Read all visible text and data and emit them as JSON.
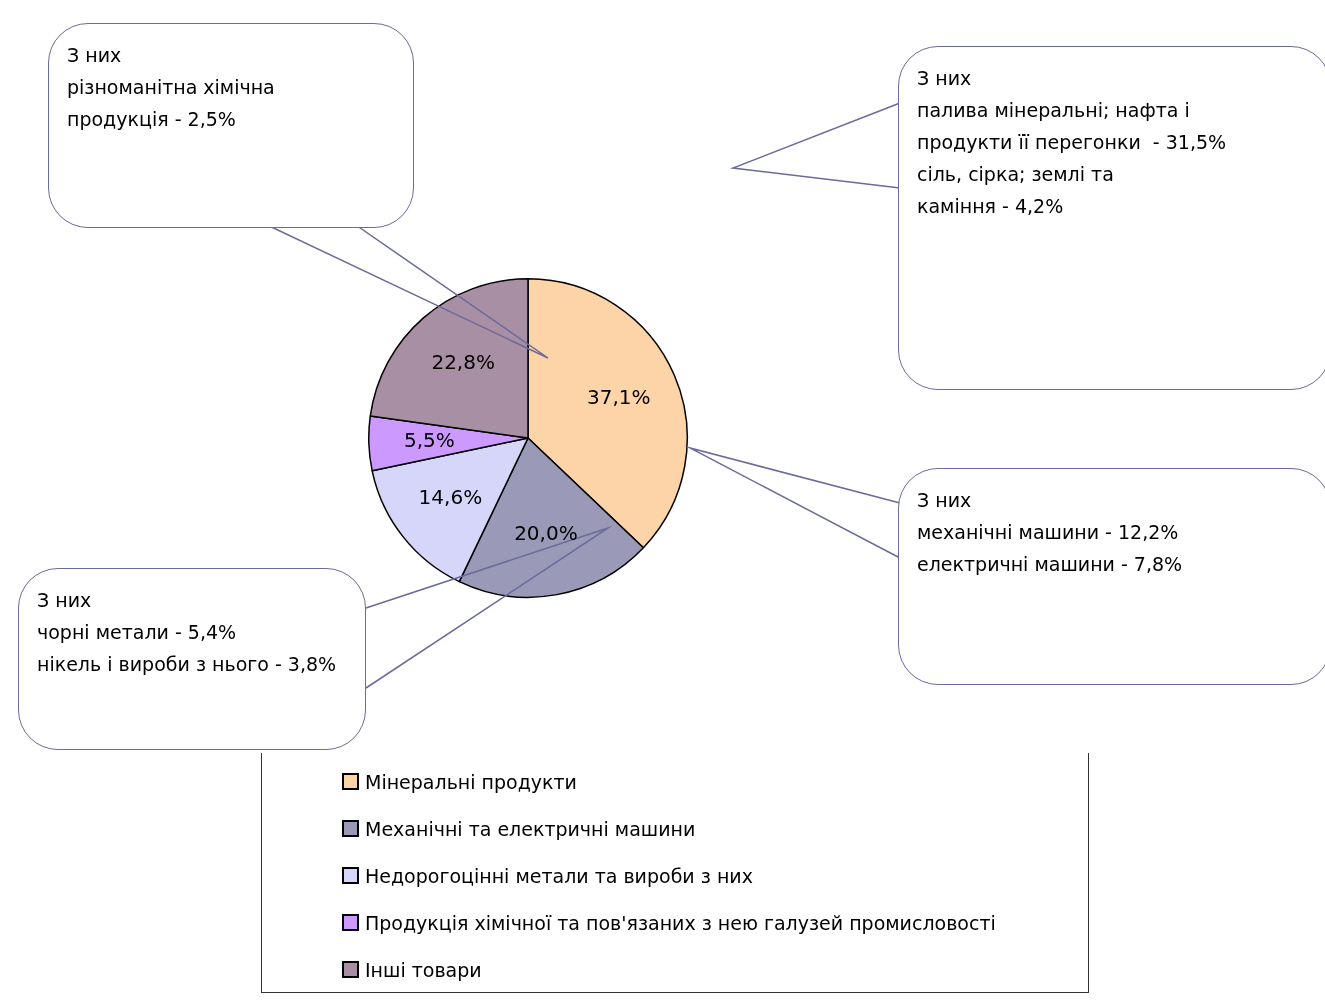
{
  "chart_data": {
    "type": "pie",
    "categories": [
      "Мінеральні продукти",
      "Механічні та електричні машини",
      "Недорогоцінні метали та вироби з них",
      "Продукція хімічної та пов'язаних з нею галузей промисловості",
      "Інші товари"
    ],
    "values": [
      37.1,
      20.0,
      14.6,
      5.5,
      22.8
    ],
    "value_labels": [
      "37,1%",
      "20,0%",
      "14,6%",
      "5,5%",
      "22,8%"
    ],
    "colors": [
      "#fdd3a8",
      "#9a9ab8",
      "#d6d6fb",
      "#cc99ff",
      "#a88fa3"
    ],
    "legend": "bottom",
    "annotations": [
      "З них\nрізноманітна хімічна\nпродукція - 2,5%",
      "З них\nпалива мінеральні; нафта і\nпродукти її перегонки  - 31,5%\nсіль, сірка; землі та\nкаміння - 4,2%",
      "З них\nмеханічні машини - 12,2%\nелектричні машини - 7,8%",
      "З них\nчорні метали - 5,4%\nнікель і вироби з нього - 3,8%"
    ]
  }
}
